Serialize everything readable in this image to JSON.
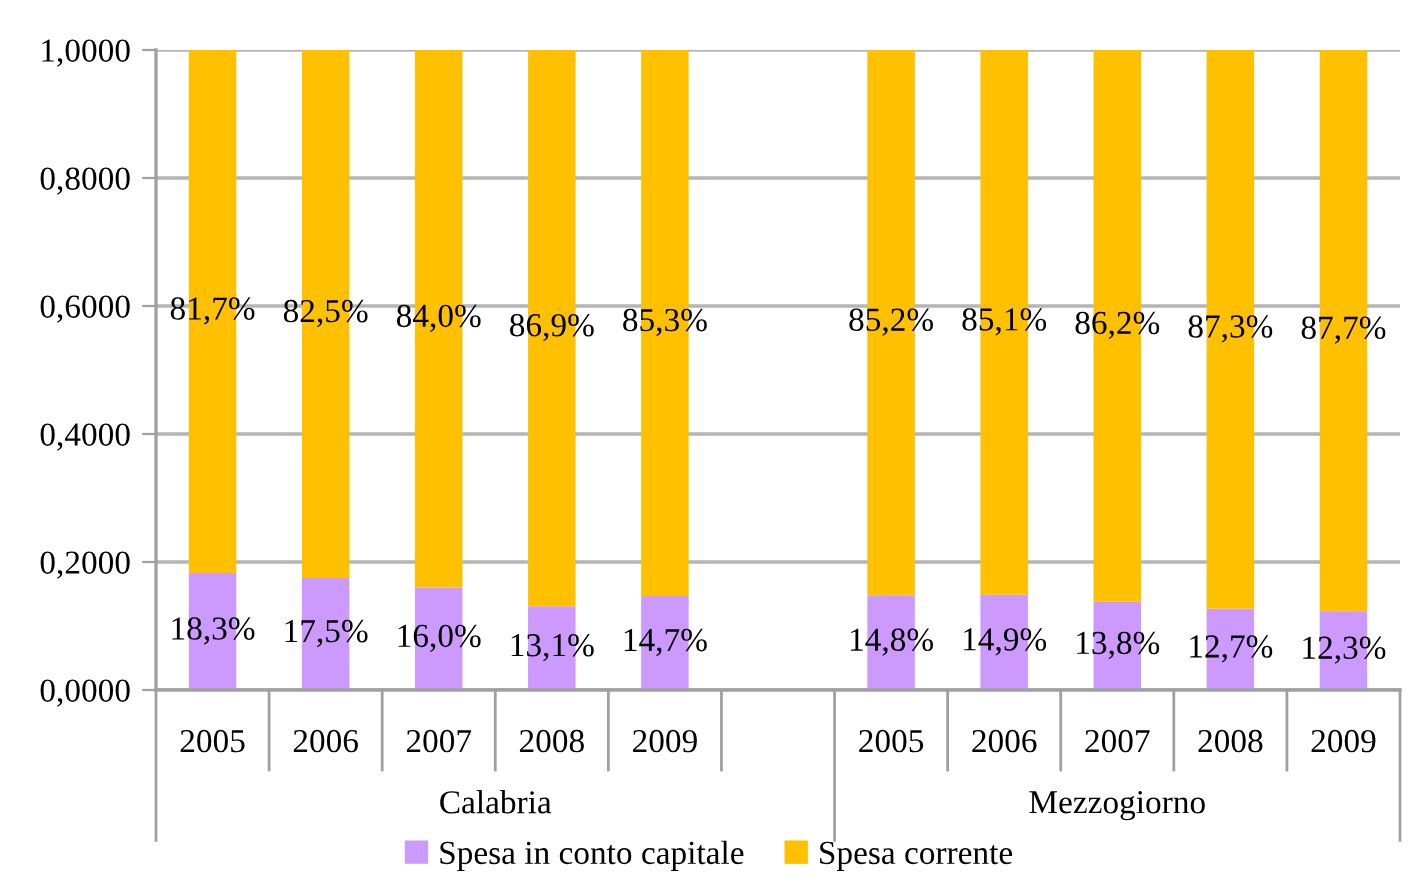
{
  "chart_data": {
    "type": "bar",
    "stacked": true,
    "categories": [
      "2005",
      "2006",
      "2007",
      "2008",
      "2009",
      null,
      "2005",
      "2006",
      "2007",
      "2008",
      "2009"
    ],
    "series": [
      {
        "name": "Spesa in conto capitale",
        "color": "#cc99ff",
        "values": [
          0.183,
          0.175,
          0.16,
          0.131,
          0.147,
          null,
          0.148,
          0.149,
          0.138,
          0.127,
          0.123
        ],
        "value_labels": [
          "18,3%",
          "17,5%",
          "16,0%",
          "13,1%",
          "14,7%",
          null,
          "14,8%",
          "14,9%",
          "13,8%",
          "12,7%",
          "12,3%"
        ]
      },
      {
        "name": "Spesa corrente",
        "color": "#ffc000",
        "values": [
          0.817,
          0.825,
          0.84,
          0.869,
          0.853,
          null,
          0.852,
          0.851,
          0.862,
          0.873,
          0.877
        ],
        "value_labels": [
          "81,7%",
          "82,5%",
          "84,0%",
          "86,9%",
          "85,3%",
          null,
          "85,2%",
          "85,1%",
          "86,2%",
          "87,3%",
          "87,7%"
        ]
      }
    ],
    "ylim": [
      0,
      1
    ],
    "yticks": [
      {
        "value": 0,
        "label": "0,0000"
      },
      {
        "value": 0.2,
        "label": "0,2000"
      },
      {
        "value": 0.4,
        "label": "0,4000"
      },
      {
        "value": 0.6,
        "label": "0,6000"
      },
      {
        "value": 0.8,
        "label": "0,8000"
      },
      {
        "value": 1,
        "label": "1,0000"
      }
    ],
    "grid": "y",
    "legend": "bottom",
    "annotations": [
      "Calabria",
      "Mezzogiorno"
    ]
  }
}
